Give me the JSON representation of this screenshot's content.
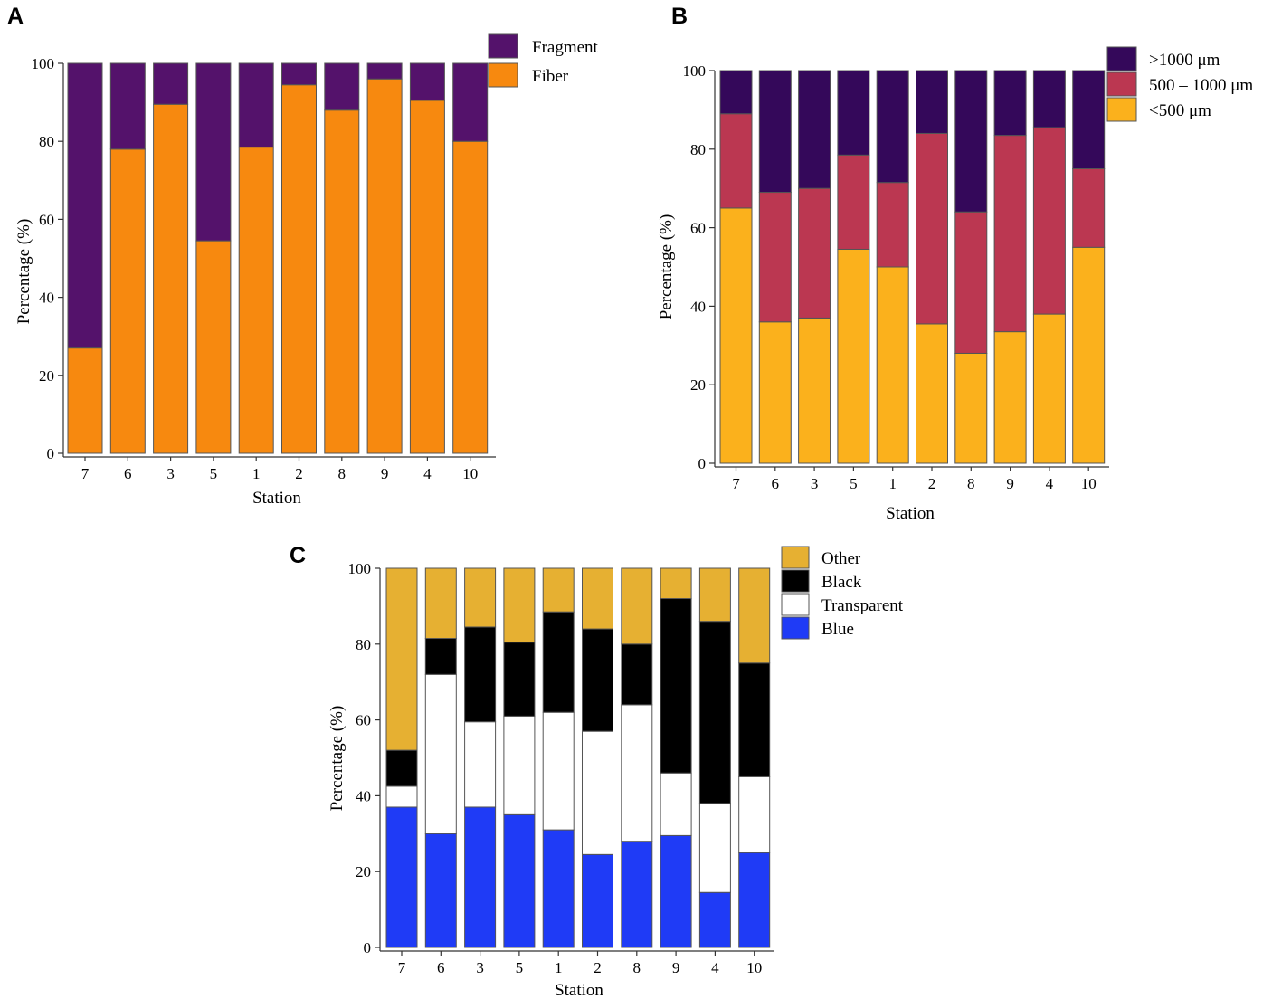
{
  "chart_data": [
    {
      "panel": "A",
      "type": "bar",
      "stacked": true,
      "xlabel": "Station",
      "ylabel": "Percentage (%)",
      "ylim": [
        0,
        100
      ],
      "yticks": [
        0,
        20,
        40,
        60,
        80,
        100
      ],
      "categories": [
        "7",
        "6",
        "3",
        "5",
        "1",
        "2",
        "8",
        "9",
        "4",
        "10"
      ],
      "series": [
        {
          "name": "Fiber",
          "color": "#f7890f",
          "values": [
            27,
            78,
            89.5,
            54.5,
            78.5,
            94.5,
            88,
            96,
            90.5,
            80
          ]
        },
        {
          "name": "Fragment",
          "color": "#54126b",
          "values": [
            73,
            22,
            10.5,
            45.5,
            21.5,
            5.5,
            12,
            4,
            9.5,
            20
          ]
        }
      ],
      "legend": [
        "Fragment",
        "Fiber"
      ],
      "legend_position": "top-right"
    },
    {
      "panel": "B",
      "type": "bar",
      "stacked": true,
      "xlabel": "Station",
      "ylabel": "Percentage (%)",
      "ylim": [
        0,
        100
      ],
      "yticks": [
        0,
        20,
        40,
        60,
        80,
        100
      ],
      "categories": [
        "7",
        "6",
        "3",
        "5",
        "1",
        "2",
        "8",
        "9",
        "4",
        "10"
      ],
      "series": [
        {
          "name": "<500 μm",
          "color": "#fbb11c",
          "values": [
            65,
            36,
            37,
            54.5,
            50,
            35.5,
            28,
            33.5,
            38,
            55
          ]
        },
        {
          "name": "500 – 1000 μm",
          "color": "#bb3751",
          "values": [
            24,
            33,
            33,
            24,
            21.5,
            48.5,
            36,
            50,
            47.5,
            20
          ]
        },
        {
          "name": ">1000 μm",
          "color": "#34085a",
          "values": [
            11,
            31,
            30,
            21.5,
            28.5,
            16,
            36,
            16.5,
            14.5,
            25
          ]
        }
      ],
      "legend": [
        ">1000 μm",
        "500 – 1000 μm",
        "<500 μm"
      ],
      "legend_position": "top-right"
    },
    {
      "panel": "C",
      "type": "bar",
      "stacked": true,
      "xlabel": "Station",
      "ylabel": "Percentage (%)",
      "ylim": [
        0,
        100
      ],
      "yticks": [
        0,
        20,
        40,
        60,
        80,
        100
      ],
      "categories": [
        "7",
        "6",
        "3",
        "5",
        "1",
        "2",
        "8",
        "9",
        "4",
        "10"
      ],
      "series": [
        {
          "name": "Blue",
          "color": "#1f3bf6",
          "values": [
            37,
            30,
            37,
            35,
            31,
            24.5,
            28,
            29.5,
            14.5,
            25
          ]
        },
        {
          "name": "Transparent",
          "color": "#ffffff",
          "values": [
            5.5,
            42,
            22.5,
            26,
            31,
            32.5,
            36,
            16.5,
            23.5,
            20
          ]
        },
        {
          "name": "Black",
          "color": "#000000",
          "values": [
            9.5,
            9.5,
            25,
            19.5,
            26.5,
            27,
            16,
            46,
            48,
            30
          ]
        },
        {
          "name": "Other",
          "color": "#e6b032",
          "values": [
            48,
            18.5,
            15.5,
            19.5,
            11.5,
            16,
            20,
            8,
            14,
            25
          ]
        }
      ],
      "legend": [
        "Other",
        "Black",
        "Transparent",
        "Blue"
      ],
      "legend_position": "top-right"
    }
  ]
}
